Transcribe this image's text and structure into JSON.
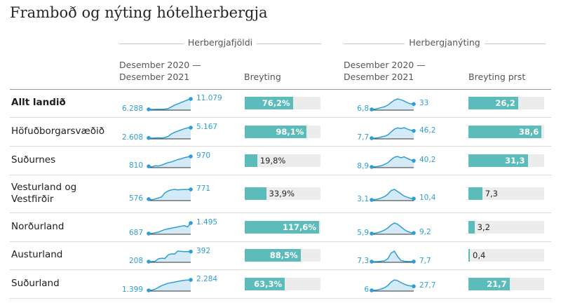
{
  "title": "Framboð og nýting hótelherbergja",
  "groups": {
    "rooms": "Herbergjafjöldi",
    "occupancy": "Herbergjanýting"
  },
  "columns": {
    "rooms_period": "Desember 2020 —\nDesember 2021",
    "rooms_change": "Breyting",
    "occ_period": "Desember 2020 —\nDesember 2021",
    "occ_change": "Breyting prst"
  },
  "colors": {
    "bar": "#5cbcbb",
    "track": "#ececec",
    "spark_line": "#2e9fd6",
    "spark_fill": "#d4ebf7"
  },
  "chart_data": {
    "type": "table",
    "rows": [
      {
        "region": "Allt landið",
        "bold": true,
        "rooms_start": "6.288",
        "rooms_end": "11.079",
        "rooms_change_label": "76,2%",
        "rooms_change": 76.2,
        "rooms_spark": [
          6288,
          6250,
          6300,
          6350,
          6300,
          6400,
          6600,
          7400,
          8200,
          8800,
          9400,
          10000,
          10600,
          11079
        ],
        "occ_start": "6,8",
        "occ_end": "33",
        "occ_change_label": "26,2",
        "occ_change": 26.2,
        "occ_spark": [
          6.8,
          8,
          12,
          16,
          20,
          28,
          40,
          52,
          58,
          54,
          48,
          40,
          34,
          33
        ]
      },
      {
        "region": "Höfuðborgarsvæðið",
        "bold": false,
        "rooms_start": "2.608",
        "rooms_end": "5.167",
        "rooms_change_label": "98,1%",
        "rooms_change": 98.1,
        "rooms_spark": [
          2608,
          2550,
          2600,
          2650,
          2600,
          2700,
          3000,
          3600,
          4000,
          4300,
          4600,
          4900,
          5100,
          5167
        ],
        "occ_start": "7,7",
        "occ_end": "46,2",
        "occ_change_label": "38,6",
        "occ_change": 38.6,
        "occ_spark": [
          7.7,
          8,
          10,
          14,
          18,
          25,
          40,
          55,
          62,
          58,
          63,
          56,
          50,
          46.2
        ]
      },
      {
        "region": "Suðurnes",
        "bold": false,
        "rooms_start": "810",
        "rooms_end": "970",
        "rooms_change_label": "19,8%",
        "rooms_change": 19.8,
        "rooms_spark": [
          810,
          800,
          820,
          815,
          830,
          850,
          870,
          880,
          900,
          920,
          930,
          950,
          960,
          970
        ],
        "occ_start": "8,9",
        "occ_end": "40,2",
        "occ_change_label": "31,3",
        "occ_change": 31.3,
        "occ_spark": [
          8.9,
          10,
          12,
          15,
          22,
          30,
          45,
          58,
          62,
          55,
          60,
          52,
          45,
          40.2
        ]
      },
      {
        "region": "Vesturland og Vestfirðir",
        "bold": false,
        "rooms_start": "576",
        "rooms_end": "771",
        "rooms_change_label": "33,9%",
        "rooms_change": 33.9,
        "rooms_spark": [
          576,
          560,
          580,
          600,
          620,
          700,
          740,
          760,
          770,
          760,
          765,
          770,
          768,
          771
        ],
        "occ_start": "3,1",
        "occ_end": "10,4",
        "occ_change_label": "7,3",
        "occ_change": 7.3,
        "occ_spark": [
          3.1,
          5,
          8,
          14,
          22,
          35,
          55,
          62,
          50,
          38,
          25,
          18,
          12,
          10.4
        ]
      },
      {
        "region": "Norðurland",
        "bold": false,
        "rooms_start": "687",
        "rooms_end": "1.495",
        "rooms_change_label": "117,6%",
        "rooms_change": 117.6,
        "rooms_spark": [
          687,
          700,
          750,
          800,
          900,
          1000,
          1050,
          1100,
          1150,
          1200,
          1250,
          1300,
          1200,
          1495
        ],
        "occ_start": "5,9",
        "occ_end": "9,2",
        "occ_change_label": "3,2",
        "occ_change": 3.2,
        "occ_spark": [
          5.9,
          8,
          12,
          18,
          26,
          38,
          55,
          66,
          60,
          45,
          30,
          18,
          12,
          9.2
        ]
      },
      {
        "region": "Austurland",
        "bold": false,
        "rooms_start": "208",
        "rooms_end": "392",
        "rooms_change_label": "88,5%",
        "rooms_change": 88.5,
        "rooms_spark": [
          208,
          210,
          215,
          260,
          270,
          265,
          330,
          350,
          345,
          400,
          395,
          390,
          390,
          392
        ],
        "occ_start": "7,3",
        "occ_end": "7,7",
        "occ_change_label": "0,4",
        "occ_change": 0.4,
        "occ_spark": [
          7.3,
          7.5,
          8,
          10,
          12,
          25,
          60,
          72,
          40,
          15,
          10,
          8,
          7.8,
          7.7
        ]
      },
      {
        "region": "Suðurland",
        "bold": false,
        "rooms_start": "1.399",
        "rooms_end": "2.284",
        "rooms_change_label": "63,3%",
        "rooms_change": 63.3,
        "rooms_spark": [
          1399,
          1420,
          1500,
          1650,
          1800,
          1900,
          2000,
          2050,
          2100,
          2150,
          2200,
          2250,
          2270,
          2284
        ],
        "occ_start": "6",
        "occ_end": "27,7",
        "occ_change_label": "21,7",
        "occ_change": 21.7,
        "occ_spark": [
          6,
          7,
          9,
          14,
          20,
          32,
          50,
          62,
          58,
          48,
          40,
          33,
          30,
          27.7
        ]
      }
    ]
  }
}
